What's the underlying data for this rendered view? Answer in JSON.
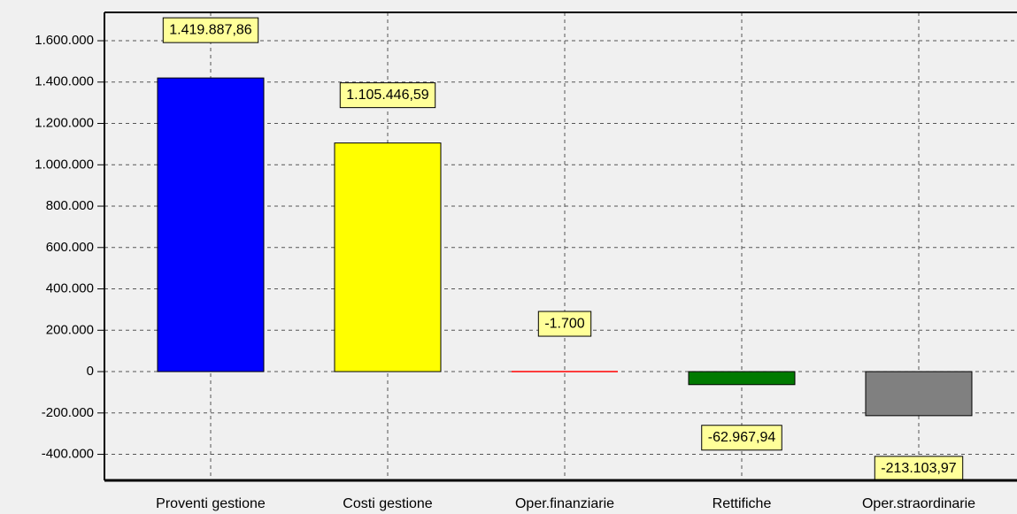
{
  "chart_data": {
    "type": "bar",
    "categories": [
      "Proventi gestione",
      "Costi gestione",
      "Oper.finanziarie",
      "Rettifiche",
      "Oper.straordinarie"
    ],
    "values": [
      1419887.86,
      1105446.59,
      -1700,
      -62967.94,
      -213103.97
    ],
    "value_labels": [
      "1.419.887,86",
      "1.105.446,59",
      "-1.700",
      "-62.967,94",
      "-213.103,97"
    ],
    "colors": [
      "#0000ff",
      "#ffff00",
      "#ff0000",
      "#007a00",
      "#808080"
    ],
    "ylim": [
      -526000,
      1737000
    ],
    "yticks": [
      {
        "value": -400000,
        "label": "-400.000"
      },
      {
        "value": -200000,
        "label": "-200.000"
      },
      0,
      {
        "value": 200000,
        "label": "200.000"
      },
      {
        "value": 400000,
        "label": "400.000"
      },
      {
        "value": 600000,
        "label": "600.000"
      },
      {
        "value": 800000,
        "label": "800.000"
      },
      {
        "value": 1000000,
        "label": "1.000.000"
      },
      {
        "value": 1200000,
        "label": "1.200.000"
      },
      {
        "value": 1400000,
        "label": "1.400.000"
      },
      {
        "value": 1600000,
        "label": "1.600.000"
      }
    ],
    "grid": true
  }
}
